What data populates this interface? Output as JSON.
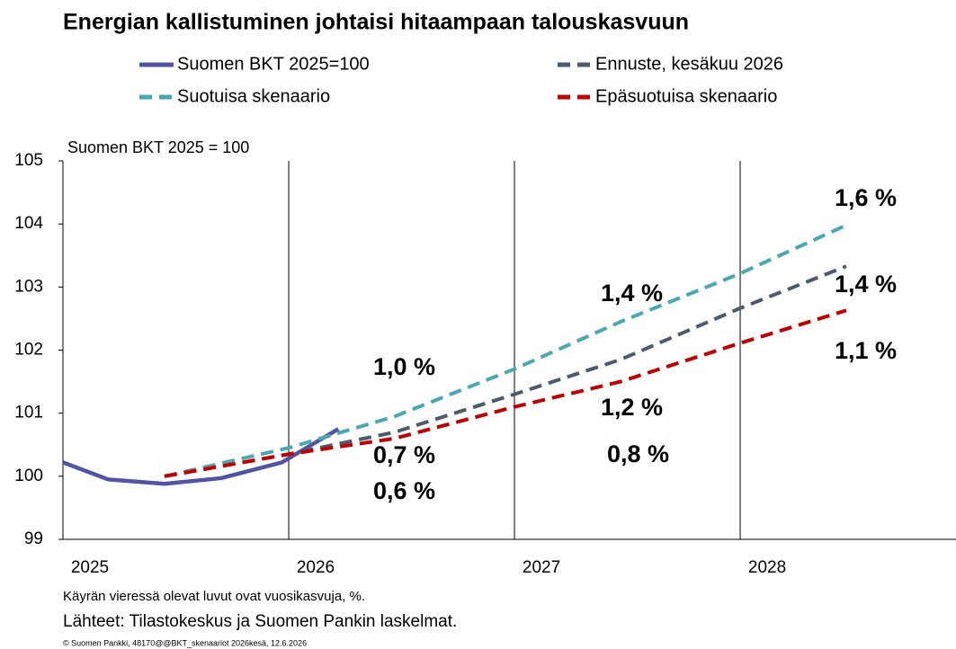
{
  "chart_data": {
    "type": "line",
    "title": "Energian kallistuminen johtaisi hitaampaan talouskasvuun",
    "y_label": "Suomen BKT 2025 = 100",
    "xlim": [
      2025,
      2028.956
    ],
    "xticks": [
      2025,
      2026,
      2027,
      2028
    ],
    "ylim": [
      99,
      105
    ],
    "yticks": [
      99,
      100,
      101,
      102,
      103,
      104,
      105
    ],
    "grid": "x",
    "series": [
      {
        "name": "Suomen BKT 2025=100",
        "color": "#5254a3",
        "dashed": false,
        "x": [
          2025.0,
          2025.2,
          2025.45,
          2025.7,
          2025.97,
          2026.22
        ],
        "values": [
          100.22,
          99.95,
          99.88,
          99.97,
          100.22,
          100.75
        ]
      },
      {
        "name": "Ennuste, kesäkuu 2026",
        "color": "#4d5a6b",
        "dashed": true,
        "x": [
          2025.45,
          2026.0,
          2026.47,
          2027.0,
          2027.47,
          2027.99,
          2028.47
        ],
        "values": [
          100.0,
          100.35,
          100.7,
          101.3,
          101.85,
          102.65,
          103.33
        ]
      },
      {
        "name": "Suotuisa skenaario",
        "color": "#4aa8b3",
        "dashed": true,
        "x": [
          2025.45,
          2026.0,
          2026.47,
          2027.0,
          2027.47,
          2027.99,
          2028.47
        ],
        "values": [
          100.0,
          100.45,
          100.95,
          101.7,
          102.45,
          103.2,
          103.98
        ]
      },
      {
        "name": "Epäsuotuisa skenaario",
        "color": "#c00000",
        "dashed": true,
        "x": [
          2025.45,
          2026.0,
          2026.47,
          2027.0,
          2027.47,
          2027.99,
          2028.47
        ],
        "values": [
          100.0,
          100.35,
          100.6,
          101.1,
          101.5,
          102.1,
          102.63
        ]
      }
    ],
    "annotations": [
      {
        "text": "1,0 %",
        "color": "#4aa8b3"
      },
      {
        "text": "1,4 %",
        "color": "#4aa8b3"
      },
      {
        "text": "1,6 %",
        "color": "#4aa8b3"
      },
      {
        "text": "0,7 %",
        "color": "#4d5a6b"
      },
      {
        "text": "1,2 %",
        "color": "#4d5a6b"
      },
      {
        "text": "1,4 %",
        "color": "#4d5a6b"
      },
      {
        "text": "0,6 %",
        "color": "#c00000"
      },
      {
        "text": "0,8 %",
        "color": "#c00000"
      },
      {
        "text": "1,1 %",
        "color": "#c00000"
      }
    ],
    "notes": [
      "Käyrän vieressä olevat luvut ovat vuosikasvuja, %.",
      "Lähteet: Tilastokeskus ja Suomen Pankin laskelmat."
    ],
    "copyright": "© Suomen Pankki, 48170@@BKT_skenaariot 2026kesä,  12.6.2026"
  }
}
